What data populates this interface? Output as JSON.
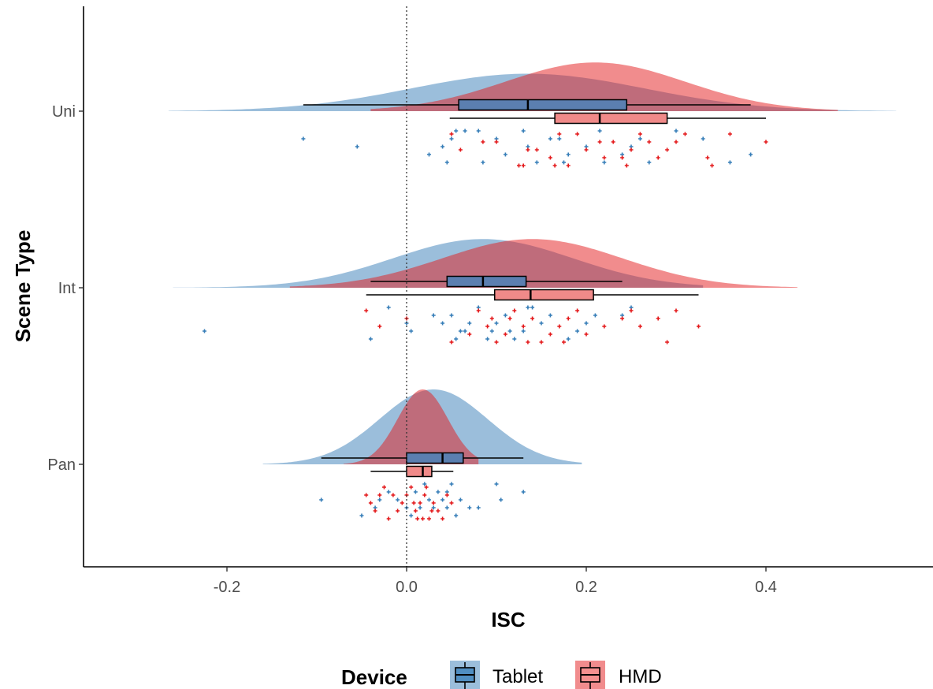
{
  "chart_data": {
    "type": "raincloud",
    "xlabel": "ISC",
    "ylabel": "Scene Type",
    "xlim": [
      -0.36,
      0.58
    ],
    "xticks": [
      -0.2,
      0.0,
      0.2,
      0.4
    ],
    "xtick_labels": [
      "-0.2",
      "0.0",
      "0.2",
      "0.4"
    ],
    "categories": [
      "Uni",
      "Int",
      "Pan"
    ],
    "reference_line": {
      "x": 0.0,
      "style": "dotted"
    },
    "grid": false,
    "legend": {
      "title": "Device",
      "position": "bottom",
      "entries": [
        "Tablet",
        "HMD"
      ]
    },
    "colors": {
      "Tablet": "#377eb8",
      "HMD": "#e41a1c"
    },
    "series": [
      {
        "name": "Tablet",
        "groups": {
          "Uni": {
            "box": {
              "whisker_low": -0.115,
              "q1": 0.058,
              "median": 0.135,
              "q3": 0.245,
              "whisker_high": 0.383
            },
            "density": {
              "mean": 0.135,
              "sd": 0.13,
              "from": -0.265,
              "to": 0.545
            },
            "points": [
              [
                -0.115,
                1
              ],
              [
                -0.055,
                2
              ],
              [
                0.055,
                0
              ],
              [
                0.065,
                0
              ],
              [
                0.025,
                3
              ],
              [
                0.04,
                2
              ],
              [
                0.05,
                1
              ],
              [
                0.08,
                0
              ],
              [
                0.085,
                4
              ],
              [
                0.11,
                3
              ],
              [
                0.13,
                0
              ],
              [
                0.135,
                2
              ],
              [
                0.17,
                1
              ],
              [
                0.175,
                4
              ],
              [
                0.18,
                3
              ],
              [
                0.2,
                2
              ],
              [
                0.215,
                0
              ],
              [
                0.22,
                4
              ],
              [
                0.24,
                3
              ],
              [
                0.25,
                2
              ],
              [
                0.26,
                1
              ],
              [
                0.27,
                4
              ],
              [
                0.3,
                0
              ],
              [
                0.33,
                1
              ],
              [
                0.36,
                4
              ],
              [
                0.383,
                3
              ],
              [
                0.1,
                1
              ],
              [
                0.145,
                4
              ],
              [
                0.045,
                4
              ],
              [
                0.16,
                1
              ]
            ]
          },
          "Int": {
            "box": {
              "whisker_low": -0.04,
              "q1": 0.045,
              "median": 0.085,
              "q3": 0.133,
              "whisker_high": 0.24
            },
            "density": {
              "mean": 0.085,
              "sd": 0.1,
              "from": -0.26,
              "to": 0.33
            },
            "points": [
              [
                -0.225,
                3
              ],
              [
                -0.04,
                4
              ],
              [
                -0.02,
                0
              ],
              [
                0.0,
                2
              ],
              [
                0.005,
                3
              ],
              [
                0.03,
                1
              ],
              [
                0.04,
                2
              ],
              [
                0.05,
                1
              ],
              [
                0.055,
                4
              ],
              [
                0.06,
                3
              ],
              [
                0.07,
                2
              ],
              [
                0.08,
                0
              ],
              [
                0.09,
                4
              ],
              [
                0.095,
                3
              ],
              [
                0.1,
                2
              ],
              [
                0.11,
                1
              ],
              [
                0.12,
                4
              ],
              [
                0.13,
                3
              ],
              [
                0.135,
                0
              ],
              [
                0.15,
                2
              ],
              [
                0.16,
                1
              ],
              [
                0.18,
                4
              ],
              [
                0.19,
                3
              ],
              [
                0.2,
                2
              ],
              [
                0.21,
                1
              ],
              [
                0.24,
                1
              ],
              [
                0.25,
                0
              ],
              [
                0.14,
                0
              ],
              [
                0.115,
                3
              ],
              [
                0.065,
                3
              ]
            ]
          },
          "Pan": {
            "box": {
              "whisker_low": -0.095,
              "q1": 0.0,
              "median": 0.04,
              "q3": 0.063,
              "whisker_high": 0.13
            },
            "density": {
              "mean": 0.03,
              "sd": 0.06,
              "from": -0.16,
              "to": 0.195
            },
            "points": [
              [
                -0.095,
                2
              ],
              [
                -0.05,
                4
              ],
              [
                -0.035,
                3
              ],
              [
                -0.02,
                1
              ],
              [
                -0.01,
                2
              ],
              [
                0.0,
                3
              ],
              [
                0.005,
                4
              ],
              [
                0.01,
                1
              ],
              [
                0.02,
                0
              ],
              [
                0.025,
                2
              ],
              [
                0.03,
                3
              ],
              [
                0.035,
                1
              ],
              [
                0.04,
                2
              ],
              [
                0.045,
                3
              ],
              [
                0.05,
                0
              ],
              [
                0.055,
                4
              ],
              [
                0.06,
                2
              ],
              [
                0.07,
                3
              ],
              [
                0.08,
                3
              ],
              [
                0.1,
                0
              ],
              [
                0.105,
                2
              ],
              [
                0.13,
                1
              ],
              [
                0.015,
                3
              ],
              [
                0.045,
                1
              ],
              [
                -0.03,
                2
              ]
            ]
          }
        }
      },
      {
        "name": "HMD",
        "groups": {
          "Uni": {
            "box": {
              "whisker_low": 0.048,
              "q1": 0.165,
              "median": 0.215,
              "q3": 0.29,
              "whisker_high": 0.4
            },
            "density": {
              "mean": 0.21,
              "sd": 0.1,
              "from": -0.04,
              "to": 0.48
            },
            "points": [
              [
                0.05,
                0
              ],
              [
                0.06,
                2
              ],
              [
                0.1,
                1
              ],
              [
                0.13,
                4
              ],
              [
                0.145,
                2
              ],
              [
                0.16,
                3
              ],
              [
                0.165,
                4
              ],
              [
                0.17,
                0
              ],
              [
                0.18,
                4
              ],
              [
                0.19,
                0
              ],
              [
                0.2,
                2
              ],
              [
                0.22,
                3
              ],
              [
                0.23,
                1
              ],
              [
                0.24,
                3
              ],
              [
                0.25,
                2
              ],
              [
                0.26,
                0
              ],
              [
                0.27,
                1
              ],
              [
                0.28,
                3
              ],
              [
                0.29,
                2
              ],
              [
                0.3,
                1
              ],
              [
                0.31,
                0
              ],
              [
                0.34,
                4
              ],
              [
                0.36,
                0
              ],
              [
                0.4,
                1
              ],
              [
                0.125,
                4
              ],
              [
                0.085,
                1
              ],
              [
                0.135,
                2
              ],
              [
                0.245,
                4
              ],
              [
                0.335,
                3
              ],
              [
                0.215,
                1
              ]
            ]
          },
          "Int": {
            "box": {
              "whisker_low": -0.045,
              "q1": 0.098,
              "median": 0.138,
              "q3": 0.208,
              "whisker_high": 0.325
            },
            "density": {
              "mean": 0.14,
              "sd": 0.1,
              "from": -0.13,
              "to": 0.435
            },
            "points": [
              [
                -0.045,
                0
              ],
              [
                -0.03,
                2
              ],
              [
                0.0,
                1
              ],
              [
                0.05,
                4
              ],
              [
                0.07,
                3
              ],
              [
                0.08,
                0
              ],
              [
                0.09,
                2
              ],
              [
                0.095,
                1
              ],
              [
                0.1,
                4
              ],
              [
                0.11,
                3
              ],
              [
                0.12,
                0
              ],
              [
                0.13,
                2
              ],
              [
                0.14,
                1
              ],
              [
                0.15,
                4
              ],
              [
                0.16,
                3
              ],
              [
                0.17,
                2
              ],
              [
                0.18,
                1
              ],
              [
                0.19,
                0
              ],
              [
                0.2,
                3
              ],
              [
                0.22,
                2
              ],
              [
                0.24,
                1
              ],
              [
                0.25,
                0
              ],
              [
                0.26,
                2
              ],
              [
                0.28,
                1
              ],
              [
                0.29,
                4
              ],
              [
                0.3,
                0
              ],
              [
                0.325,
                2
              ],
              [
                0.135,
                4
              ],
              [
                0.175,
                4
              ],
              [
                0.115,
                1
              ]
            ]
          },
          "Pan": {
            "box": {
              "whisker_low": -0.04,
              "q1": 0.0,
              "median": 0.018,
              "q3": 0.028,
              "whisker_high": 0.052
            },
            "density": {
              "mean": 0.018,
              "sd": 0.028,
              "from": -0.07,
              "to": 0.08
            },
            "points": [
              [
                -0.04,
                2
              ],
              [
                -0.035,
                3
              ],
              [
                -0.025,
                0
              ],
              [
                -0.02,
                4
              ],
              [
                -0.015,
                1
              ],
              [
                -0.01,
                3
              ],
              [
                -0.005,
                2
              ],
              [
                0.0,
                1
              ],
              [
                0.005,
                0
              ],
              [
                0.01,
                3
              ],
              [
                0.015,
                2
              ],
              [
                0.02,
                1
              ],
              [
                0.025,
                4
              ],
              [
                0.03,
                2
              ],
              [
                0.035,
                3
              ],
              [
                0.04,
                4
              ],
              [
                0.045,
                1
              ],
              [
                0.05,
                2
              ],
              [
                -0.045,
                1
              ],
              [
                0.012,
                4
              ],
              [
                0.022,
                0
              ],
              [
                -0.03,
                1
              ],
              [
                0.008,
                2
              ],
              [
                0.028,
                3
              ],
              [
                0.018,
                4
              ]
            ]
          }
        }
      }
    ]
  }
}
